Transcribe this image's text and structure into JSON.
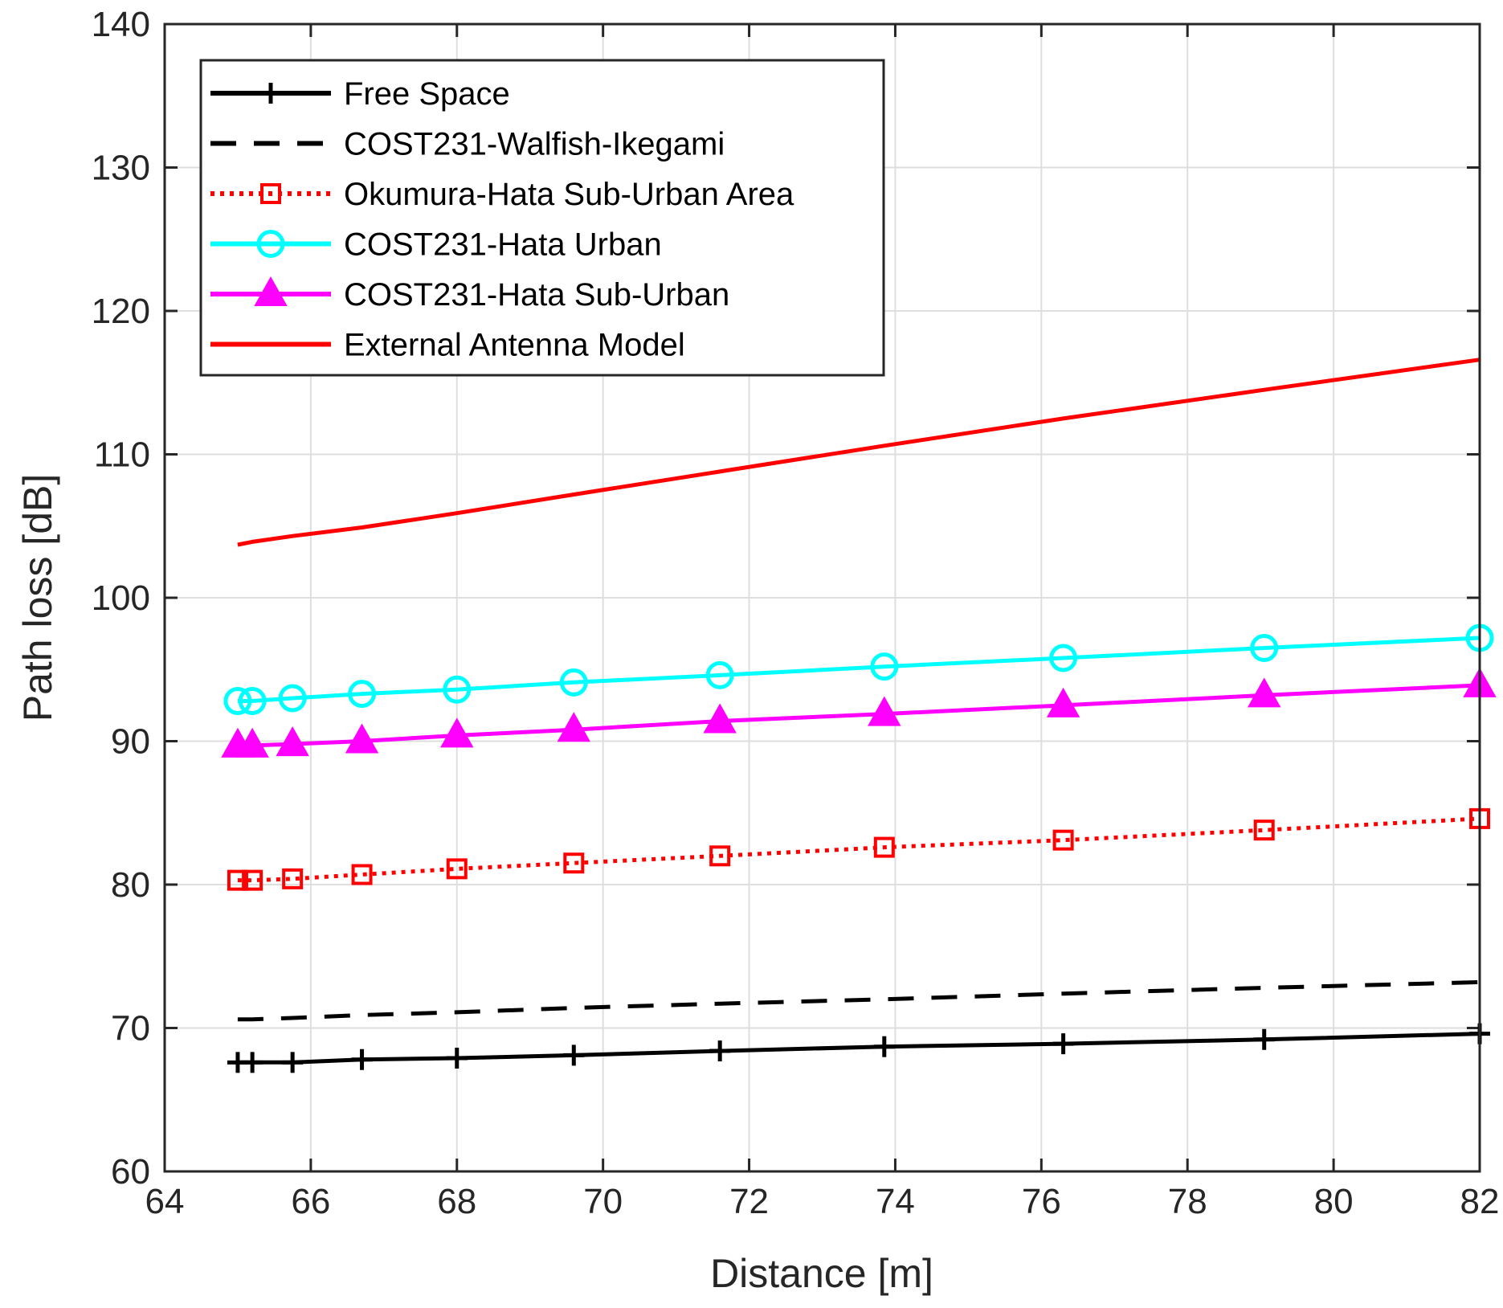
{
  "chart_data": {
    "type": "line",
    "xlabel": "Distance [m]",
    "ylabel": "Path loss [dB]",
    "xlim": [
      64,
      82
    ],
    "ylim": [
      60,
      140
    ],
    "xticks": [
      64,
      66,
      68,
      70,
      72,
      74,
      76,
      78,
      80,
      82
    ],
    "yticks": [
      60,
      70,
      80,
      90,
      100,
      110,
      120,
      130,
      140
    ],
    "xtick_labels": [
      "64",
      "66",
      "68",
      "70",
      "72",
      "74",
      "76",
      "78",
      "80",
      "82"
    ],
    "ytick_labels": [
      "60",
      "70",
      "80",
      "90",
      "100",
      "110",
      "120",
      "130",
      "140"
    ],
    "grid": true,
    "legend_position": "top-left",
    "x": [
      65.0,
      65.2,
      65.75,
      66.7,
      68.0,
      69.6,
      71.6,
      73.85,
      76.3,
      79.05,
      82.0
    ],
    "series": [
      {
        "name": "Free Space",
        "color": "#000000",
        "line": "solid",
        "marker": "plus",
        "values": [
          67.6,
          67.6,
          67.6,
          67.8,
          67.9,
          68.1,
          68.4,
          68.7,
          68.9,
          69.2,
          69.6
        ]
      },
      {
        "name": "COST231-Walfish-Ikegami",
        "color": "#000000",
        "line": "dashed",
        "marker": "none",
        "values": [
          70.6,
          70.6,
          70.7,
          70.9,
          71.1,
          71.4,
          71.7,
          72.0,
          72.4,
          72.8,
          73.2
        ]
      },
      {
        "name": "Okumura-Hata Sub-Urban Area",
        "color": "#ff0000",
        "line": "dotted",
        "marker": "square",
        "values": [
          80.3,
          80.3,
          80.4,
          80.7,
          81.1,
          81.5,
          82.0,
          82.6,
          83.1,
          83.8,
          84.6
        ]
      },
      {
        "name": "COST231-Hata Urban",
        "color": "#00ffff",
        "line": "solid",
        "marker": "circle",
        "values": [
          92.8,
          92.8,
          93.0,
          93.3,
          93.6,
          94.1,
          94.6,
          95.2,
          95.8,
          96.5,
          97.2
        ]
      },
      {
        "name": "COST231-Hata Sub-Urban",
        "color": "#ff00ff",
        "line": "solid",
        "marker": "triangle",
        "values": [
          89.7,
          89.7,
          89.8,
          90.0,
          90.4,
          90.8,
          91.4,
          91.9,
          92.5,
          93.2,
          93.9
        ]
      },
      {
        "name": "External Antenna Model",
        "color": "#ff0000",
        "line": "solid",
        "marker": "none",
        "values": [
          103.7,
          103.9,
          104.3,
          104.9,
          105.9,
          107.2,
          108.8,
          110.6,
          112.5,
          114.5,
          116.6
        ]
      }
    ]
  }
}
